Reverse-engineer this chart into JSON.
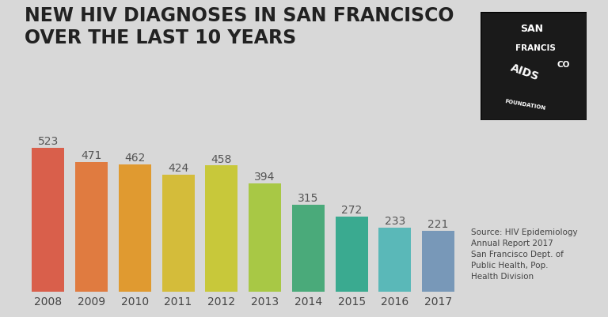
{
  "years": [
    "2008",
    "2009",
    "2010",
    "2011",
    "2012",
    "2013",
    "2014",
    "2015",
    "2016",
    "2017"
  ],
  "values": [
    523,
    471,
    462,
    424,
    458,
    394,
    315,
    272,
    233,
    221
  ],
  "bar_colors": [
    "#d95f4b",
    "#e07b40",
    "#e09a30",
    "#d4bc3a",
    "#c8c83a",
    "#a8c845",
    "#4aaa7a",
    "#3aaa90",
    "#5ab8b8",
    "#7898b8"
  ],
  "title_line1": "NEW HIV DIAGNOSES IN SAN FRANCISCO",
  "title_line2": "OVER THE LAST 10 YEARS",
  "source_text": "Source: HIV Epidemiology\nAnnual Report 2017\nSan Francisco Dept. of\nPublic Health, Pop.\nHealth Division",
  "background_color": "#d8d8d8",
  "title_fontsize": 17,
  "label_fontsize": 10,
  "tick_fontsize": 10,
  "value_color": "#555555",
  "ylim": [
    0,
    600
  ]
}
